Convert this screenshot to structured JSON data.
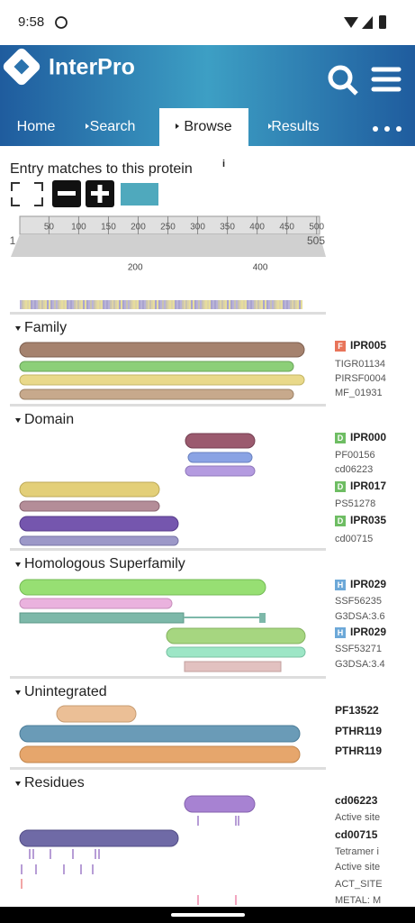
{
  "status_bar": {
    "time": "9:58"
  },
  "header": {
    "title": "InterPro"
  },
  "nav": {
    "tabs": [
      "Home",
      "Search",
      "Browse",
      "Results"
    ]
  },
  "entry_matches": {
    "title": "Entry matches to this protein",
    "ruler_ticks": [
      50,
      100,
      150,
      200,
      250,
      300,
      350,
      400,
      450,
      500
    ],
    "start": 1,
    "end": 505,
    "overview_ticks": [
      200,
      400
    ]
  },
  "sections": [
    {
      "title": "Family",
      "entries": [
        {
          "badge": "F",
          "id": "IPR005",
          "members": [
            "TIGR01134",
            "PIRSF0004",
            "MF_01931"
          ]
        }
      ]
    },
    {
      "title": "Domain",
      "entries": [
        {
          "badge": "D",
          "id": "IPR000",
          "members": [
            "PF00156",
            "cd06223"
          ]
        },
        {
          "badge": "D",
          "id": "IPR017",
          "members": [
            "PS51278"
          ]
        },
        {
          "badge": "D",
          "id": "IPR035",
          "members": [
            "cd00715"
          ]
        }
      ]
    },
    {
      "title": "Homologous Superfamily",
      "entries": [
        {
          "badge": "H",
          "id": "IPR029",
          "members": [
            "SSF56235",
            "G3DSA:3.6"
          ]
        },
        {
          "badge": "H",
          "id": "IPR029",
          "members": [
            "SSF53271",
            "G3DSA:3.4"
          ]
        }
      ]
    },
    {
      "title": "Unintegrated",
      "entries": [
        {
          "id": "PF13522",
          "members": []
        },
        {
          "id": "PTHR119",
          "members": []
        },
        {
          "id": "PTHR119",
          "members": []
        }
      ]
    },
    {
      "title": "Residues",
      "entries": [
        {
          "id": "cd06223",
          "members": [
            "Active site"
          ]
        },
        {
          "id": "cd00715",
          "members": [
            "Tetramer i",
            "Active site",
            "ACT_SITE",
            "METAL: M"
          ]
        }
      ]
    }
  ]
}
